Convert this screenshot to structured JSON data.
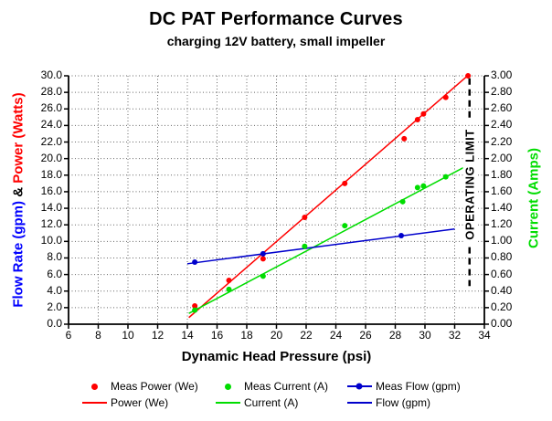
{
  "title": "DC PAT Performance Curves",
  "subtitle": "charging 12V battery, small impeller",
  "axes": {
    "x_label": "Dynamic Head Pressure (psi)",
    "y_left_flow": "Flow Rate (gpm)",
    "y_left_sep": " & ",
    "y_left_power": "Power (Watts)",
    "y_right_label": "Current (Amps)"
  },
  "colors": {
    "power": "#FF0000",
    "current": "#00DD00",
    "flow": "#0000CC",
    "flow_label": "#0000FF",
    "grid": "#666666",
    "axis": "#000000",
    "annotation": "#000000"
  },
  "chart_data": {
    "type": "scatter",
    "title": "DC PAT Performance Curves",
    "subtitle": "charging 12V battery, small impeller",
    "grid": true,
    "legend_position": "bottom",
    "x_axis": {
      "label": "Dynamic Head Pressure (psi)",
      "min": 6,
      "max": 34,
      "tick_values": [
        6,
        8,
        10,
        12,
        14,
        16,
        18,
        20,
        22,
        24,
        26,
        28,
        30,
        32,
        34
      ],
      "tick_labels": [
        "6",
        "8",
        "10",
        "12",
        "14",
        "16",
        "18",
        "20",
        "22",
        "24",
        "26",
        "28",
        "30",
        "32",
        "34"
      ]
    },
    "y_left": {
      "label": "Flow Rate (gpm) & Power (Watts)",
      "min": 0,
      "max": 30,
      "tick_values": [
        0,
        2,
        4,
        6,
        8,
        10,
        12,
        14,
        16,
        18,
        20,
        22,
        24,
        26,
        28,
        30
      ],
      "tick_labels": [
        "0.0",
        "2.0",
        "4.0",
        "6.0",
        "8.0",
        "10.0",
        "12.0",
        "14.0",
        "16.0",
        "18.0",
        "20.0",
        "22.0",
        "24.0",
        "26.0",
        "28.0",
        "30.0"
      ]
    },
    "y_right": {
      "label": "Current (Amps)",
      "min": 0,
      "max": 3,
      "tick_values": [
        0,
        0.2,
        0.4,
        0.6,
        0.8,
        1.0,
        1.2,
        1.4,
        1.6,
        1.8,
        2.0,
        2.2,
        2.4,
        2.6,
        2.8,
        3.0
      ],
      "tick_labels": [
        "0.00",
        "0.20",
        "0.40",
        "0.60",
        "0.80",
        "1.00",
        "1.20",
        "1.40",
        "1.60",
        "1.80",
        "2.00",
        "2.20",
        "2.40",
        "2.60",
        "2.80",
        "3.00"
      ]
    },
    "series": [
      {
        "name": "Meas Power (We)",
        "style": "points",
        "color": "#FF0000",
        "axis": "left",
        "points": [
          [
            14.5,
            2.2
          ],
          [
            16.8,
            5.3
          ],
          [
            19.1,
            7.9
          ],
          [
            21.9,
            12.9
          ],
          [
            24.6,
            17.0
          ],
          [
            28.6,
            22.4
          ],
          [
            29.5,
            24.7
          ],
          [
            29.9,
            25.4
          ],
          [
            31.4,
            27.4
          ],
          [
            32.9,
            30.0
          ]
        ]
      },
      {
        "name": "Power (We)",
        "style": "line",
        "color": "#FF0000",
        "axis": "left",
        "points": [
          [
            14.1,
            0.8
          ],
          [
            32.8,
            29.9
          ]
        ]
      },
      {
        "name": "Meas Current (A)",
        "style": "points",
        "color": "#00DD00",
        "axis": "right",
        "points": [
          [
            14.5,
            0.17
          ],
          [
            16.8,
            0.42
          ],
          [
            19.1,
            0.58
          ],
          [
            21.9,
            0.94
          ],
          [
            24.6,
            1.19
          ],
          [
            28.5,
            1.48
          ],
          [
            29.5,
            1.65
          ],
          [
            29.9,
            1.67
          ],
          [
            31.4,
            1.78
          ],
          [
            32.9,
            1.91
          ]
        ]
      },
      {
        "name": "Current (A)",
        "style": "line",
        "color": "#00DD00",
        "axis": "right",
        "points": [
          [
            14.1,
            0.13
          ],
          [
            33.1,
            1.94
          ]
        ]
      },
      {
        "name": "Meas Flow (gpm)",
        "style": "points",
        "color": "#0000CC",
        "axis": "left",
        "points": [
          [
            14.5,
            7.5
          ],
          [
            19.1,
            8.5
          ],
          [
            28.4,
            10.7
          ]
        ]
      },
      {
        "name": "Flow (gpm)",
        "style": "line",
        "color": "#0000CC",
        "axis": "left",
        "points": [
          [
            14.0,
            7.3
          ],
          [
            32.0,
            11.5
          ]
        ]
      }
    ],
    "annotation": {
      "label": "OPERATING LIMIT",
      "x": 33,
      "label_center_value": 16.9,
      "line_segments": [
        [
          29.7,
          24.5
        ],
        [
          9.3,
          4.6
        ]
      ],
      "color": "#000000"
    }
  },
  "legend": {
    "items": [
      {
        "label": "Meas Power (We)",
        "marker": "dot",
        "color": "#FF0000"
      },
      {
        "label": "Meas Current (A)",
        "marker": "dot",
        "color": "#00DD00"
      },
      {
        "label": "Meas Flow (gpm)",
        "marker": "line-dot",
        "color": "#0000CC"
      },
      {
        "label": "Power (We)",
        "marker": "line",
        "color": "#FF0000"
      },
      {
        "label": "Current (A)",
        "marker": "line",
        "color": "#00DD00"
      },
      {
        "label": "Flow (gpm)",
        "marker": "line",
        "color": "#0000CC"
      }
    ]
  }
}
